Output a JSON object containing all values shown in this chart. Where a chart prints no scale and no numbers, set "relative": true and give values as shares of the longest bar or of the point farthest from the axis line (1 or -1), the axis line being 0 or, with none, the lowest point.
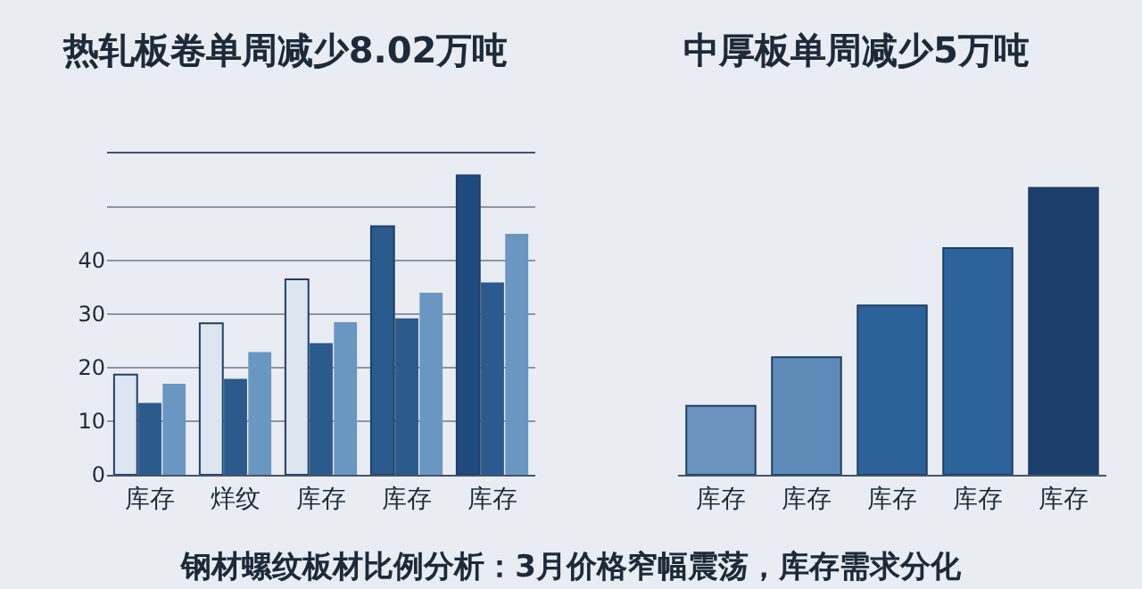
{
  "chart_data": [
    {
      "type": "bar",
      "title": "热轧板卷单周减少8.02万吨",
      "categories": [
        "库存",
        "烊纹",
        "库存",
        "库存",
        "库存"
      ],
      "series": [
        {
          "colors": [
            "#dce6f0",
            "#dce6f0",
            "#dce6f0",
            "#2b5a8c",
            "#1f4a7e"
          ],
          "values": [
            18.7,
            28.3,
            36.5,
            46.4,
            55.9
          ]
        },
        {
          "color": "#2b5a8c",
          "values": [
            13.4,
            17.9,
            24.6,
            29.2,
            35.9
          ]
        },
        {
          "color": "#6a97c2",
          "values": [
            17.0,
            22.9,
            28.5,
            34.0,
            45.0
          ]
        }
      ],
      "ylim": [
        0,
        60
      ],
      "yticks": [
        0,
        10,
        20,
        30,
        40,
        {
          "value": 50,
          "label": null
        },
        {
          "value": 60,
          "label": null
        }
      ],
      "grid": "y",
      "annotations": [
        "钢材螺纹板材比例分析：3月价格窄幅震荡，库存需求分化"
      ]
    },
    {
      "type": "bar",
      "title": "中厚板单周减少5万吨",
      "categories": [
        "库存",
        "库存",
        "库存",
        "库存",
        "库存"
      ],
      "values": [
        0.24,
        0.41,
        0.59,
        0.79,
        1
      ],
      "colors": [
        "#6a93bd",
        "#5f8bb8",
        "#2d6299",
        "#2c639b",
        "#1d3f6c"
      ],
      "relative": true
    }
  ]
}
